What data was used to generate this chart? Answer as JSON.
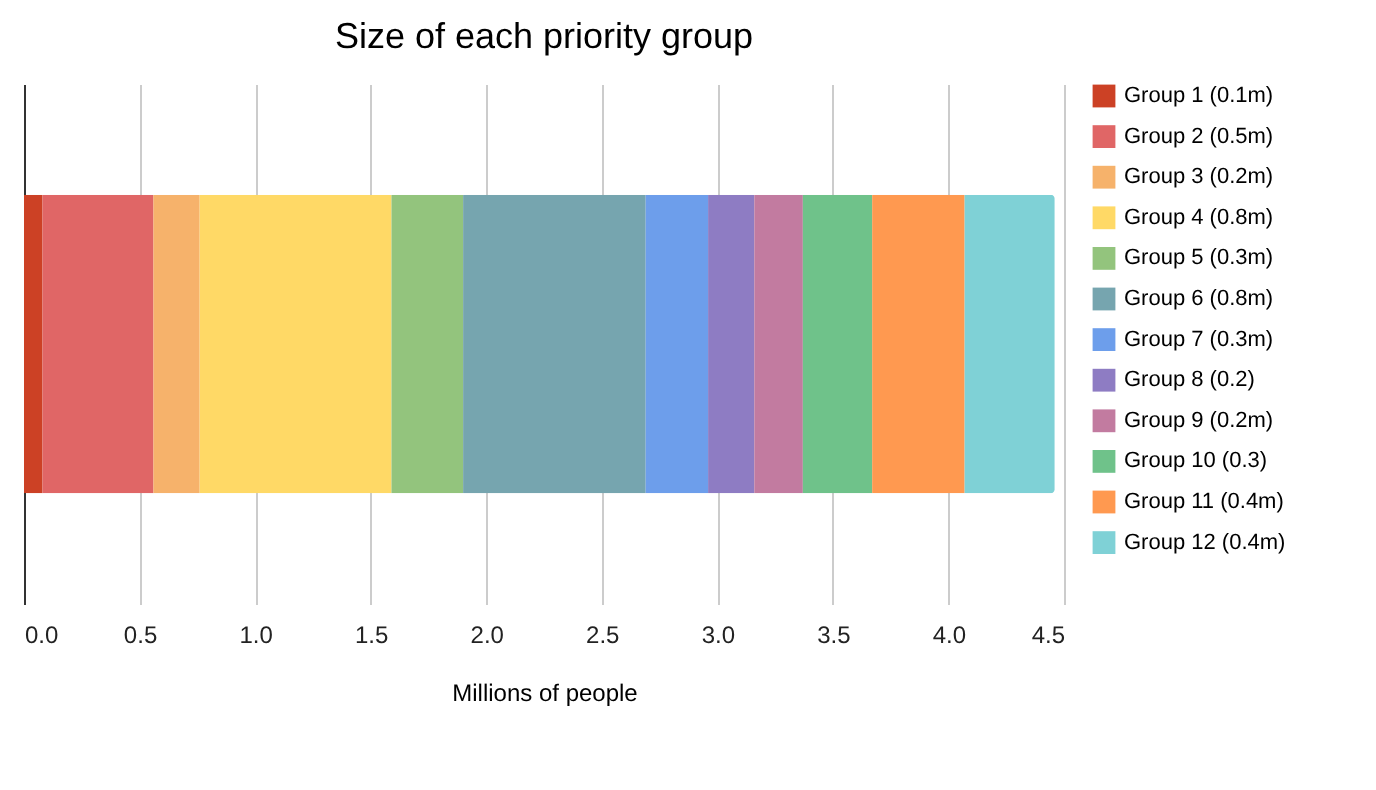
{
  "chart_data": {
    "type": "bar",
    "title": "Size of each priority group",
    "xlabel": "Millions of people",
    "orientation": "horizontal",
    "stacked": true,
    "categories": [
      null
    ],
    "series": [
      {
        "name": "Group 1 (0.1m)",
        "color": "#cc4125",
        "values": [
          0.08
        ]
      },
      {
        "name": "Group 2 (0.5m)",
        "color": "#e06666",
        "values": [
          0.48
        ]
      },
      {
        "name": "Group 3 (0.2m)",
        "color": "#f6b26b",
        "values": [
          0.2
        ]
      },
      {
        "name": "Group 4 (0.8m)",
        "color": "#ffd966",
        "values": [
          0.83
        ]
      },
      {
        "name": "Group 5 (0.3m)",
        "color": "#93c47d",
        "values": [
          0.31
        ]
      },
      {
        "name": "Group 6 (0.8m)",
        "color": "#76a5af",
        "values": [
          0.79
        ]
      },
      {
        "name": "Group 7 (0.3m)",
        "color": "#6d9eeb",
        "values": [
          0.27
        ]
      },
      {
        "name": "Group 8 (0.2)",
        "color": "#8e7cc3",
        "values": [
          0.2
        ]
      },
      {
        "name": "Group 9 (0.2m)",
        "color": "#c27ba0",
        "values": [
          0.21
        ]
      },
      {
        "name": "Group 10 (0.3)",
        "color": "#6fc28a",
        "values": [
          0.3
        ]
      },
      {
        "name": "Group 11 (0.4m)",
        "color": "#ff9950",
        "values": [
          0.4
        ]
      },
      {
        "name": "Group 12 (0.4m)",
        "color": "#7fd1d6",
        "values": [
          0.39
        ]
      }
    ],
    "xlim": [
      0,
      4.5
    ],
    "xticks": [
      {
        "value": 0,
        "label": "0.0"
      },
      {
        "value": 0.5,
        "label": "0.5"
      },
      {
        "value": 1,
        "label": "1.0"
      },
      {
        "value": 1.5,
        "label": "1.5"
      },
      {
        "value": 2,
        "label": "2.0"
      },
      {
        "value": 2.5,
        "label": "2.5"
      },
      {
        "value": 3,
        "label": "3.0"
      },
      {
        "value": 3.5,
        "label": "3.5"
      },
      {
        "value": 4,
        "label": "4.0"
      },
      {
        "value": 4.5,
        "label": "4.5"
      }
    ],
    "grid": "x",
    "legend": "right",
    "tick_labels": "x"
  }
}
